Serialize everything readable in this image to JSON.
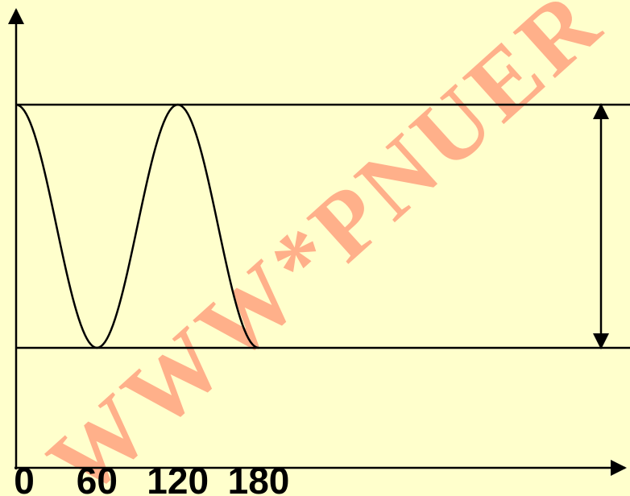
{
  "watermark": {
    "text": "WWW*PNUER",
    "color": "#ffb08a"
  },
  "chart_data": {
    "type": "line",
    "title": "",
    "xlabel": "",
    "ylabel": "",
    "x_ticks": [
      "0",
      "60",
      "120",
      "180"
    ],
    "series": [
      {
        "x": [
          0,
          60,
          120,
          180
        ],
        "y": [
          1,
          0,
          1,
          0
        ]
      }
    ],
    "levels": {
      "upper": 1,
      "lower": 0
    },
    "xlim": [
      -3,
      250
    ],
    "ylim": [
      -0.48,
      1.4
    ],
    "annotation": "double-headed arrow spanning from the lower level to the upper level at the right edge",
    "colors": {
      "line": "#000000",
      "background": "#ffffcc"
    }
  }
}
